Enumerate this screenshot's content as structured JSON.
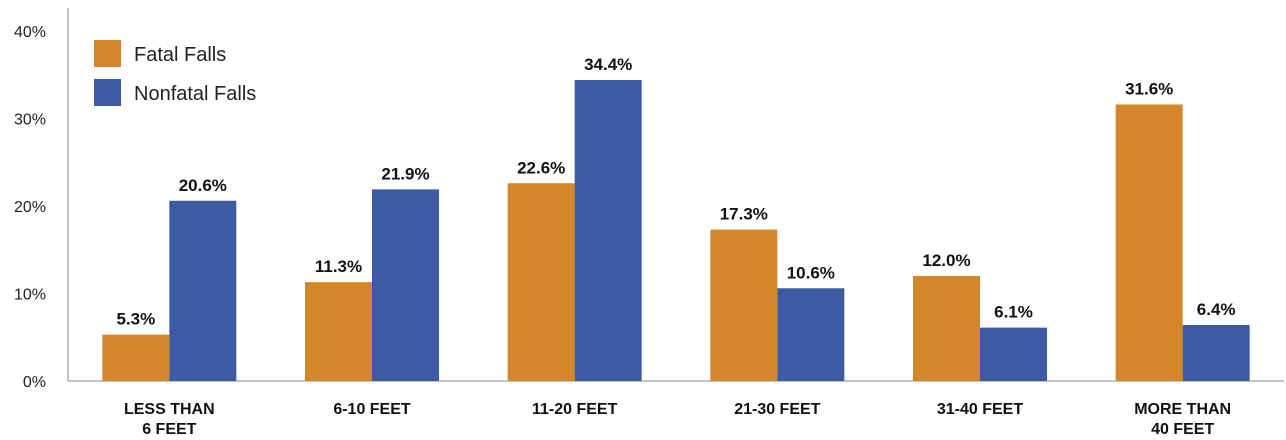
{
  "chart_data": {
    "type": "bar",
    "categories": [
      [
        "LESS THAN",
        "6 FEET"
      ],
      [
        "6-10 FEET"
      ],
      [
        "11-20 FEET"
      ],
      [
        "21-30 FEET"
      ],
      [
        "31-40 FEET"
      ],
      [
        "MORE THAN",
        "40 FEET"
      ]
    ],
    "series": [
      {
        "name": "Fatal Falls",
        "color": "#D4862A",
        "values": [
          5.3,
          11.3,
          22.6,
          17.3,
          12.0,
          31.6
        ],
        "labels": [
          "5.3%",
          "11.3%",
          "22.6%",
          "17.3%",
          "12.0%",
          "31.6%"
        ]
      },
      {
        "name": "Nonfatal Falls",
        "color": "#3C5BA3",
        "values": [
          20.6,
          21.9,
          34.4,
          10.6,
          6.1,
          6.4
        ],
        "labels": [
          "20.6%",
          "21.9%",
          "34.4%",
          "10.6%",
          "6.1%",
          "6.4%"
        ]
      }
    ],
    "y_ticks": [
      0,
      10,
      20,
      30,
      40
    ],
    "y_tick_labels": [
      "0%",
      "10%",
      "20%",
      "30%",
      "40%"
    ],
    "ylim": [
      0,
      40
    ],
    "title": "",
    "xlabel": "",
    "ylabel": "",
    "legend_position": "top-left",
    "grid": false
  }
}
